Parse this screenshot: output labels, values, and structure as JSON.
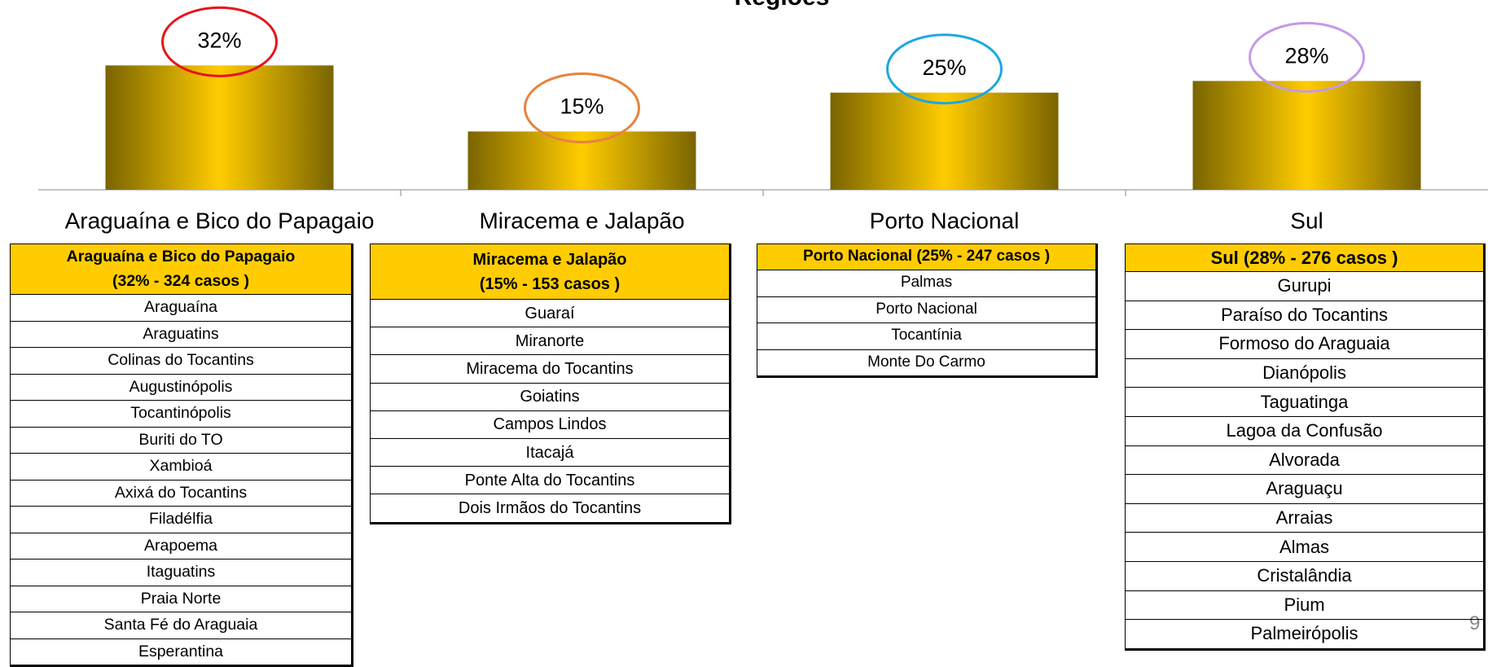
{
  "chart_data": {
    "type": "bar",
    "title": "Regiões",
    "categories": [
      "Araguaína e Bico do Papagaio",
      "Miracema e Jalapão",
      "Porto Nacional",
      "Sul"
    ],
    "values": [
      32,
      15,
      25,
      28
    ],
    "value_labels": [
      "32%",
      "15%",
      "25%",
      "28%"
    ],
    "ylim": [
      0,
      48
    ],
    "highlight_colors": [
      "#e8141b",
      "#e8823c",
      "#1ba8e0",
      "#c49ae8"
    ]
  },
  "tables": [
    {
      "header": [
        "Araguaína e Bico do Papagaio",
        "(32% - 324 casos )"
      ],
      "rows": [
        "Araguaína",
        "Araguatins",
        "Colinas do Tocantins",
        "Augustinópolis",
        "Tocantinópolis",
        "Buriti do TO",
        "Xambioá",
        "Axixá do Tocantins",
        "Filadélfia",
        "Arapoema",
        "Itaguatins",
        "Praia Norte",
        "Santa Fé do Araguaia",
        "Esperantina"
      ]
    },
    {
      "header": [
        "Miracema e Jalapão",
        "(15% - 153 casos )"
      ],
      "rows": [
        "Guaraí",
        "Miranorte",
        "Miracema do Tocantins",
        "Goiatins",
        "Campos Lindos",
        "Itacajá",
        "Ponte Alta do Tocantins",
        "Dois Irmãos do Tocantins"
      ]
    },
    {
      "header": [
        "Porto Nacional  (25% - 247 casos )"
      ],
      "rows": [
        "Palmas",
        "Porto Nacional",
        "Tocantínia",
        "Monte Do Carmo"
      ]
    },
    {
      "header": [
        "Sul  (28% - 276 casos )"
      ],
      "rows": [
        "Gurupi",
        "Paraíso do Tocantins",
        "Formoso do Araguaia",
        "Dianópolis",
        "Taguatinga",
        "Lagoa da Confusão",
        "Alvorada",
        "Araguaçu",
        "Arraias",
        "Almas",
        "Cristalândia",
        "Pium",
        "Palmeirópolis"
      ]
    }
  ],
  "page_number": "9"
}
